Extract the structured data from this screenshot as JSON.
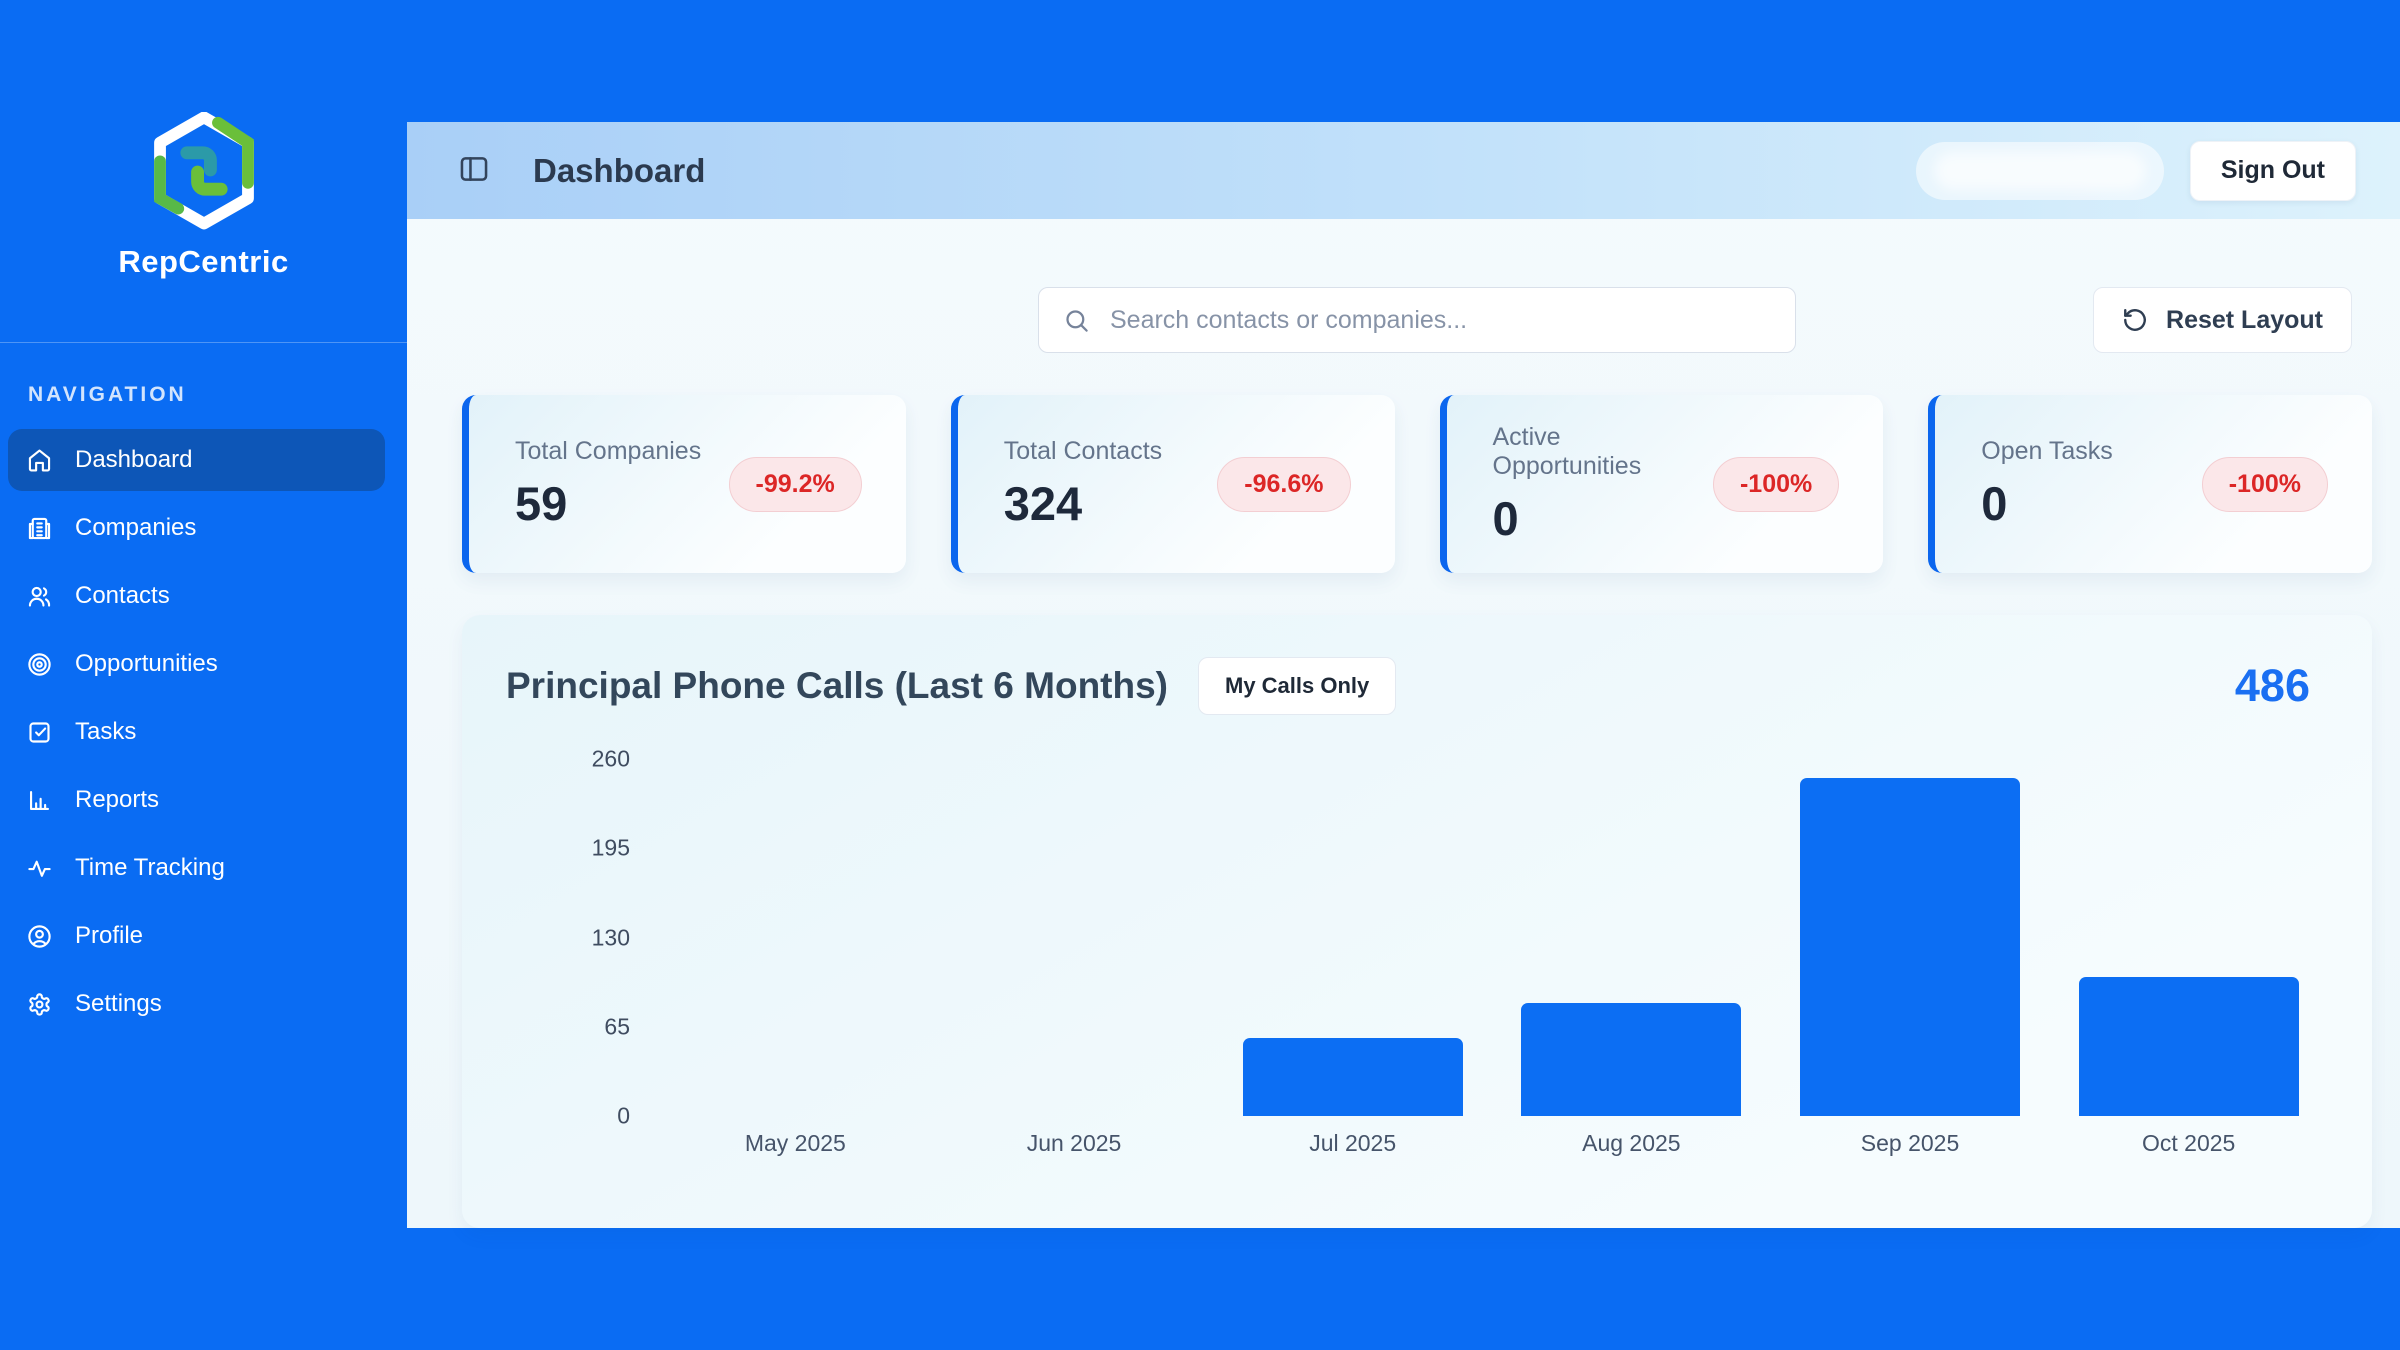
{
  "theme": {
    "primary_blue": "#0a6cf3",
    "active_nav_blue": "#0d56b7",
    "bar_blue": "#0c6ef3",
    "header_gradient": [
      "#a9cff7",
      "#ddf2fc"
    ],
    "negative_red": "#dc2626",
    "logo_green": "#6abf3a",
    "logo_teal": "#2b9aa8"
  },
  "sidebar": {
    "brand": "RepCentric",
    "section_label": "NAVIGATION",
    "items": [
      {
        "label": "Dashboard",
        "icon": "home",
        "active": true
      },
      {
        "label": "Companies",
        "icon": "building",
        "active": false
      },
      {
        "label": "Contacts",
        "icon": "users",
        "active": false
      },
      {
        "label": "Opportunities",
        "icon": "target",
        "active": false
      },
      {
        "label": "Tasks",
        "icon": "check-square",
        "active": false
      },
      {
        "label": "Reports",
        "icon": "bar-chart",
        "active": false
      },
      {
        "label": "Time Tracking",
        "icon": "activity",
        "active": false
      },
      {
        "label": "Profile",
        "icon": "user-circle",
        "active": false
      },
      {
        "label": "Settings",
        "icon": "gear",
        "active": false
      }
    ]
  },
  "header": {
    "title": "Dashboard",
    "sign_out_label": "Sign Out"
  },
  "toolbar": {
    "search_placeholder": "Search contacts or companies...",
    "reset_label": "Reset Layout"
  },
  "stats": [
    {
      "label": "Total Companies",
      "value": "59",
      "delta": "-99.2%"
    },
    {
      "label": "Total Contacts",
      "value": "324",
      "delta": "-96.6%"
    },
    {
      "label": "Active Opportunities",
      "value": "0",
      "delta": "-100%"
    },
    {
      "label": "Open Tasks",
      "value": "0",
      "delta": "-100%"
    }
  ],
  "chart": {
    "title": "Principal Phone Calls (Last 6 Months)",
    "filter_label": "My Calls Only",
    "total": "486"
  },
  "chart_data": {
    "type": "bar",
    "title": "Principal Phone Calls (Last 6 Months)",
    "categories": [
      "May 2025",
      "Jun 2025",
      "Jul 2025",
      "Aug 2025",
      "Sep 2025",
      "Oct 2025"
    ],
    "values": [
      0,
      0,
      57,
      82,
      246,
      101
    ],
    "total": 486,
    "xlabel": "",
    "ylabel": "",
    "ylim": [
      0,
      260
    ],
    "yticks": [
      0,
      65,
      130,
      195,
      260
    ],
    "grid": false,
    "legend_position": "none",
    "bar_color": "#0c6ef3"
  }
}
